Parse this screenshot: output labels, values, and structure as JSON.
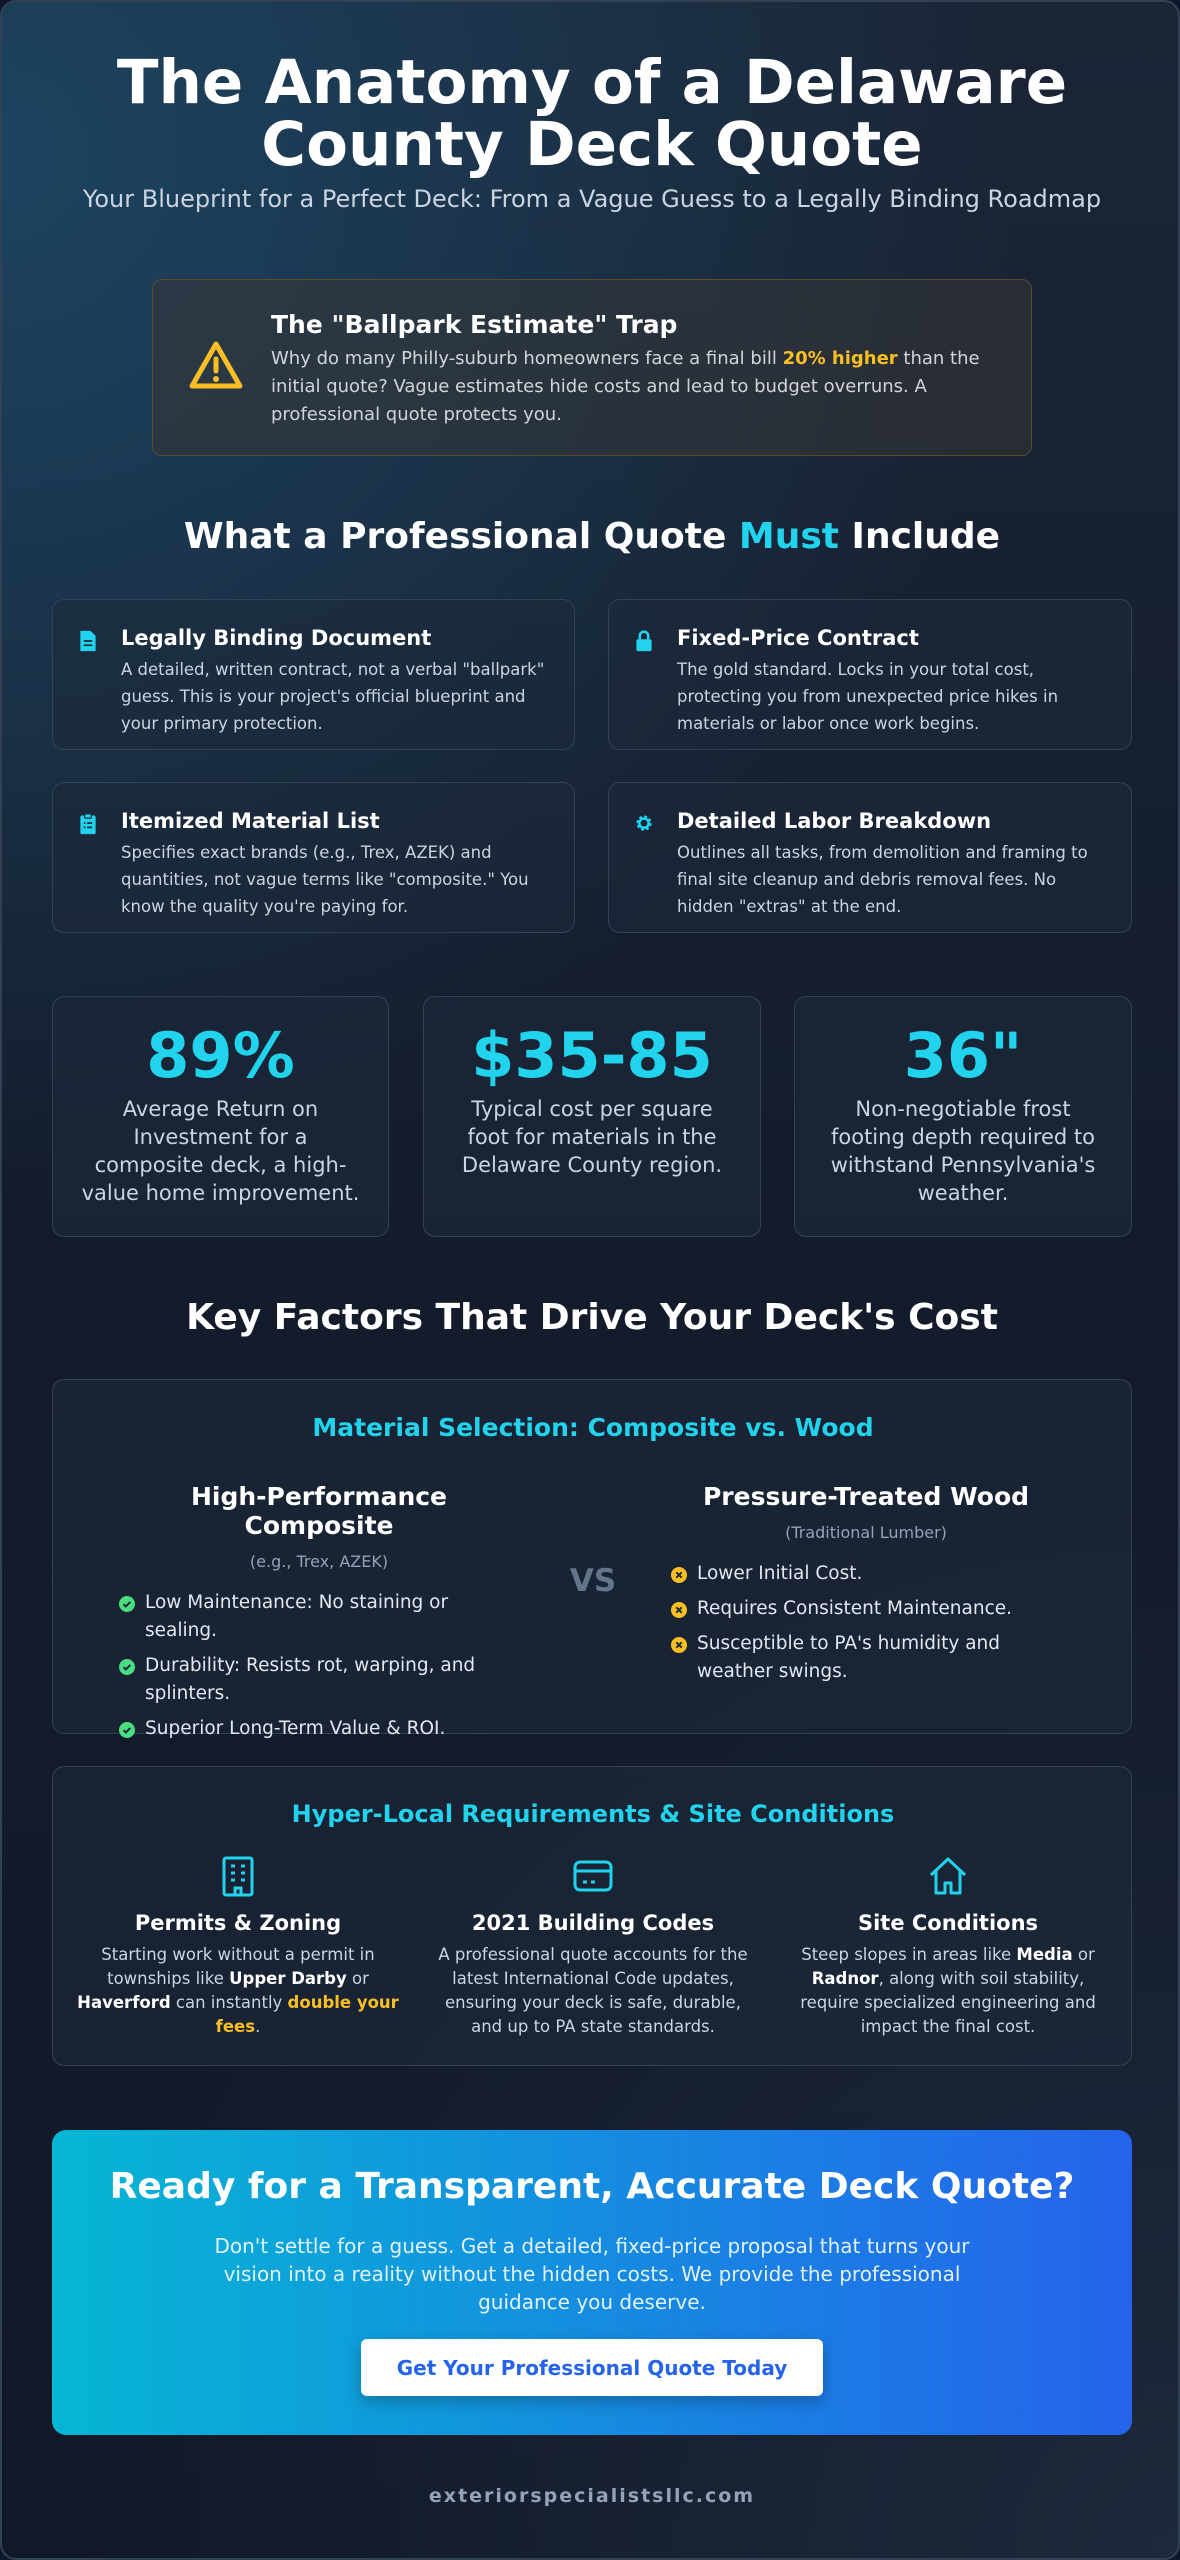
{
  "header": {
    "title": "The Anatomy of a Delaware County Deck Quote",
    "subtitle": "Your Blueprint for a Perfect Deck: From a Vague Guess to a Legally Binding Roadmap"
  },
  "alert": {
    "title": "The \"Ballpark Estimate\" Trap",
    "body": [
      "Why do many Philly-suburb homeowners face a final bill ",
      "20% higher",
      " than the initial quote? Vague estimates hide costs and lead to budget overruns. A professional quote protects you."
    ]
  },
  "must_include": {
    "heading": [
      "What a Professional Quote ",
      "Must",
      " Include"
    ],
    "cards": [
      {
        "title": "Legally Binding Document",
        "text": "A detailed, written contract, not a verbal \"ballpark\" guess. This is your project's official blueprint and your primary protection."
      },
      {
        "title": "Fixed-Price Contract",
        "text": "The gold standard. Locks in your total cost, protecting you from unexpected price hikes in materials or labor once work begins."
      },
      {
        "title": "Itemized Material List",
        "text": "Specifies exact brands (e.g., Trex, AZEK) and quantities, not vague terms like \"composite.\" You know the quality you're paying for."
      },
      {
        "title": "Detailed Labor Breakdown",
        "text": "Outlines all tasks, from demolition and framing to final site cleanup and debris removal fees. No hidden \"extras\" at the end."
      }
    ]
  },
  "stats": [
    {
      "value": "89%",
      "label": "Average Return on Investment for a composite deck, a high-value home improvement."
    },
    {
      "value": "$35-85",
      "label": "Typical cost per square foot for materials in the Delaware County region."
    },
    {
      "value": "36\"",
      "label": "Non-negotiable frost footing depth required to withstand Pennsylvania's weather."
    }
  ],
  "key_factors": {
    "heading": "Key Factors That Drive Your Deck's Cost",
    "materials": {
      "title": "Material Selection: Composite vs. Wood",
      "vs": "VS",
      "options": [
        {
          "name": "High-Performance Composite",
          "note": "(e.g., Trex, AZEK)",
          "points": [
            "Low Maintenance: No staining or sealing.",
            "Durability: Resists rot, warping, and splinters.",
            "Superior Long-Term Value & ROI."
          ]
        },
        {
          "name": "Pressure-Treated Wood",
          "note": "(Traditional Lumber)",
          "points": [
            "Lower Initial Cost.",
            "Requires Consistent Maintenance.",
            "Susceptible to PA's humidity and weather swings."
          ]
        }
      ]
    },
    "local": {
      "title": "Hyper-Local Requirements & Site Conditions",
      "items": [
        {
          "title": "Permits & Zoning",
          "text": [
            "Starting work without a permit in townships like ",
            "Upper Darby",
            " or ",
            "Haverford",
            " can instantly ",
            "double your fees",
            "."
          ]
        },
        {
          "title": "2021 Building Codes",
          "text": [
            "A professional quote accounts for the latest International Code updates, ensuring your deck is safe, durable, and up to PA state standards."
          ]
        },
        {
          "title": "Site Conditions",
          "text": [
            "Steep slopes in areas like ",
            "Media",
            " or ",
            "Radnor",
            ", along with soil stability, require specialized engineering and impact the final cost."
          ]
        }
      ]
    }
  },
  "cta": {
    "title": "Ready for a Transparent, Accurate Deck Quote?",
    "text": "Don't settle for a guess. Get a detailed, fixed-price proposal that turns your vision into a reality without the hidden costs. We provide the professional guidance you deserve.",
    "button": "Get Your Professional Quote Today"
  },
  "footer": "exteriorspecialistsllc.com"
}
